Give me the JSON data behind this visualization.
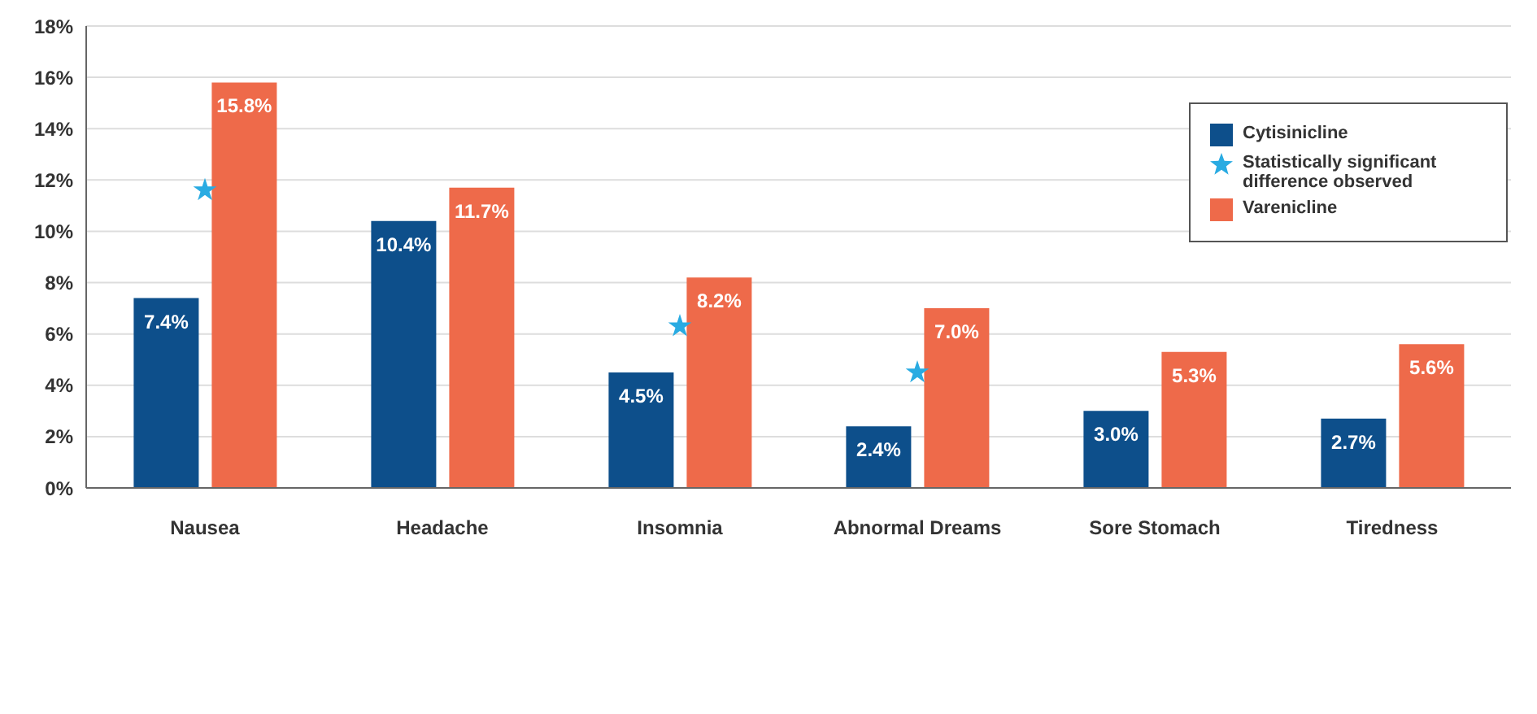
{
  "chart_data": {
    "type": "bar",
    "categories": [
      "Nausea",
      "Headache",
      "Insomnia",
      "Abnormal Dreams",
      "Sore Stomach",
      "Tiredness"
    ],
    "series": [
      {
        "name": "Cytisinicline",
        "color": "#0d4f8b",
        "values": [
          7.4,
          10.4,
          4.5,
          2.4,
          3.0,
          2.7
        ],
        "value_labels": [
          "7.4%",
          "10.4%",
          "4.5%",
          "2.4%",
          "3.0%",
          "2.7%"
        ]
      },
      {
        "name": "Varenicline",
        "color": "#ee6a4a",
        "values": [
          15.8,
          11.7,
          8.2,
          7.0,
          5.3,
          5.6
        ],
        "value_labels": [
          "15.8%",
          "11.7%",
          "8.2%",
          "7.0%",
          "5.3%",
          "5.6%"
        ]
      },
      {
        "name": "Statistically significant difference observed",
        "type": "scatter",
        "marker": "star",
        "color": "#29abe2",
        "x": [
          "Nausea",
          "Insomnia",
          "Abnormal Dreams"
        ],
        "values": [
          11.6,
          6.3,
          4.5
        ]
      }
    ],
    "ylim": [
      0,
      18
    ],
    "yticks": [
      {
        "value": 0,
        "label": "0%"
      },
      {
        "value": 2,
        "label": "2%"
      },
      {
        "value": 4,
        "label": "4%"
      },
      {
        "value": 6,
        "label": "6%"
      },
      {
        "value": 8,
        "label": "8%"
      },
      {
        "value": 10,
        "label": "10%"
      },
      {
        "value": 12,
        "label": "12%"
      },
      {
        "value": 14,
        "label": "14%"
      },
      {
        "value": 16,
        "label": "16%"
      },
      {
        "value": 18,
        "label": "18%"
      }
    ],
    "grid": "y",
    "legend": "top right"
  }
}
